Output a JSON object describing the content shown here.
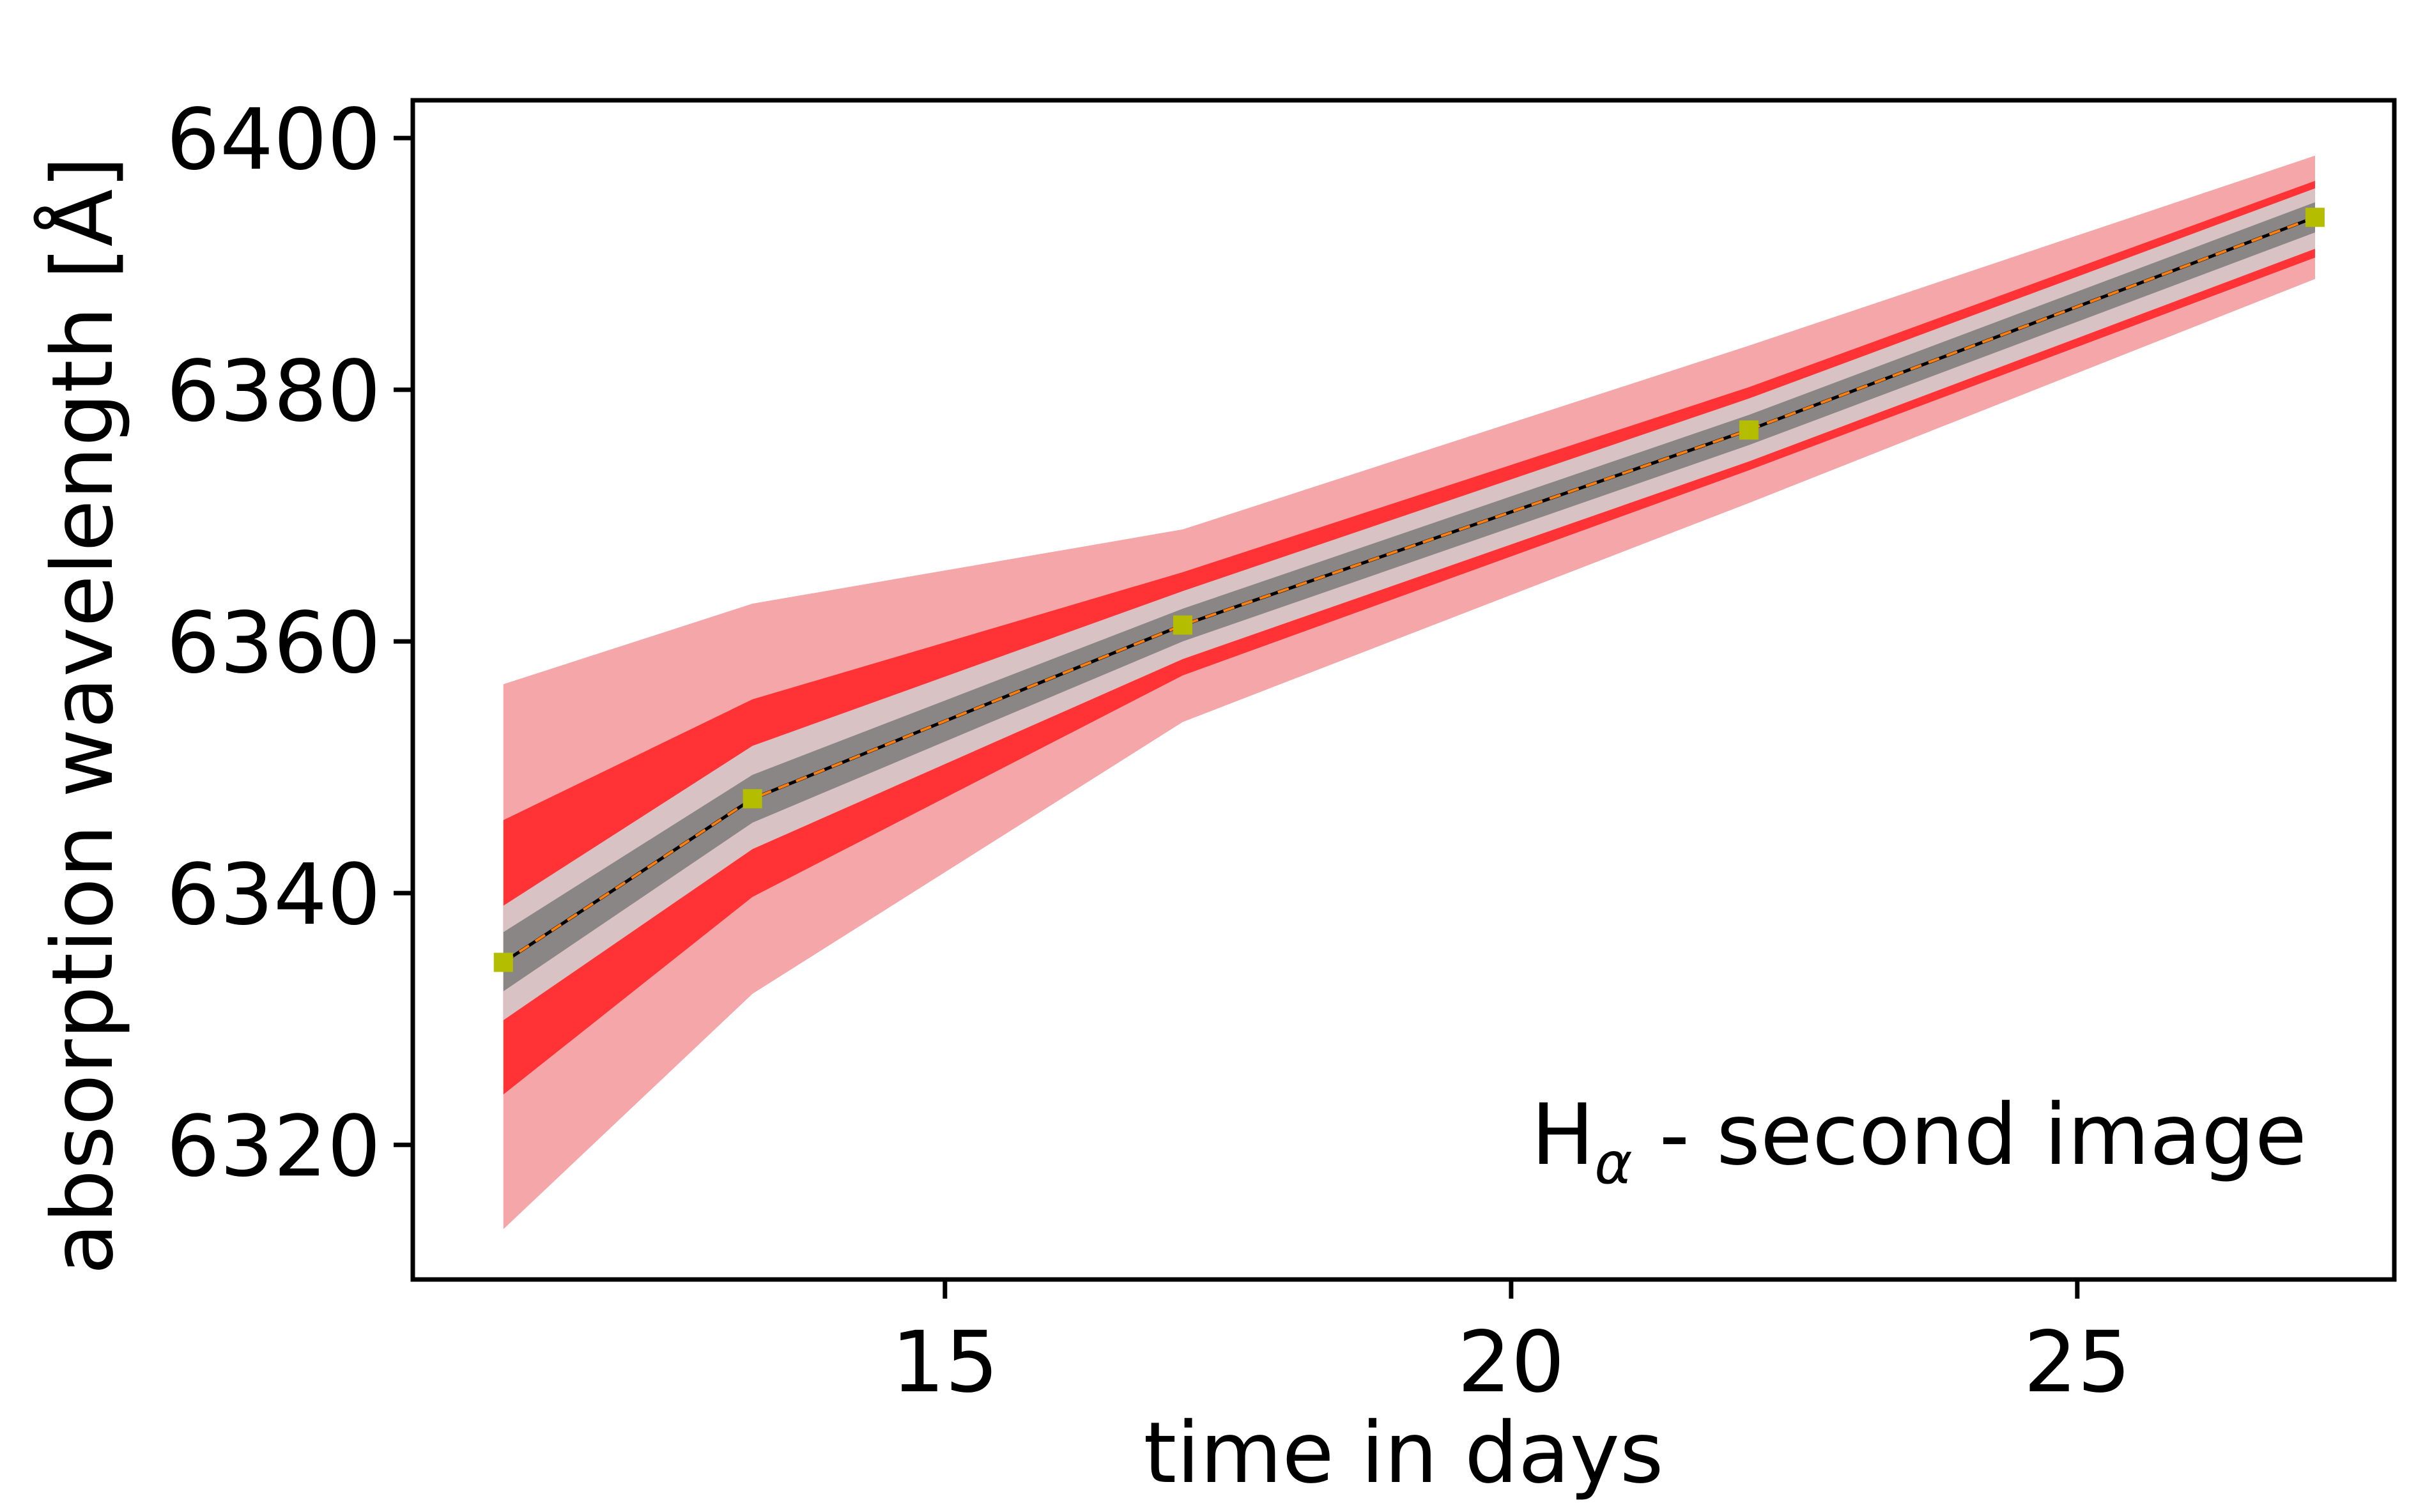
{
  "chart_data": {
    "type": "line",
    "xlabel": "time in days",
    "ylabel": "absorption wavelength [Å]",
    "xlim": [
      10.3,
      27.8
    ],
    "ylim": [
      6309.3,
      6403.0
    ],
    "xticks": [
      15,
      20,
      25
    ],
    "yticks": [
      6320,
      6340,
      6360,
      6380,
      6400
    ],
    "x": [
      11.1,
      13.3,
      17.1,
      22.1,
      27.1
    ],
    "series": [
      {
        "type": "line-markers",
        "values": [
          6334.5,
          6347.5,
          6361.3,
          6376.8,
          6393.7
        ],
        "line_color": "#000000",
        "marker_color": "#b5bd00",
        "marker": "square"
      },
      {
        "type": "dashed-line",
        "values": [
          6334.5,
          6347.5,
          6361.3,
          6376.8,
          6393.7
        ],
        "line_color": "#ff7f0e"
      },
      {
        "type": "band",
        "color": "#f4a6a8",
        "lower": [
          6313.3,
          6332.0,
          6353.6,
          6371.0,
          6388.8
        ],
        "upper": [
          6356.6,
          6363.0,
          6368.9,
          6383.5,
          6398.6
        ]
      },
      {
        "type": "band",
        "color": "#ff3335",
        "lower": [
          6324.0,
          6339.7,
          6357.3,
          6373.6,
          6390.5
        ],
        "upper": [
          6345.8,
          6355.4,
          6365.5,
          6380.2,
          6396.6
        ]
      },
      {
        "type": "band",
        "color": "#d9c2c3",
        "lower": [
          6329.9,
          6343.5,
          6358.6,
          6374.3,
          6391.2
        ],
        "upper": [
          6339.0,
          6351.7,
          6364.0,
          6379.3,
          6396.0
        ]
      },
      {
        "type": "band",
        "color": "#8a8686",
        "lower": [
          6332.2,
          6345.6,
          6360.0,
          6375.6,
          6392.5
        ],
        "upper": [
          6336.9,
          6349.4,
          6362.6,
          6378.0,
          6394.9
        ]
      }
    ],
    "annotation": {
      "text_main": "H",
      "text_sub": "α",
      "text_rest": " - second image",
      "position": "bottom-right"
    },
    "grid": false,
    "legend": "none"
  }
}
